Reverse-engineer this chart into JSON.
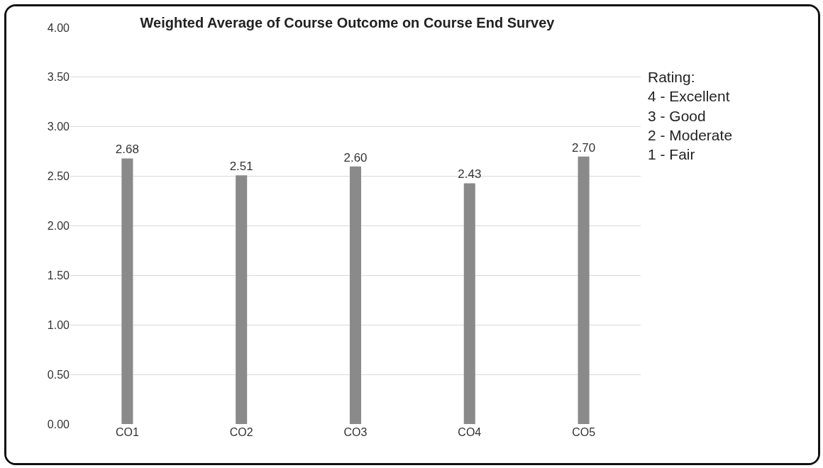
{
  "chart_data": {
    "type": "bar",
    "title": "Weighted Average of Course Outcome on Course End Survey",
    "categories": [
      "CO1",
      "CO2",
      "CO3",
      "CO4",
      "CO5"
    ],
    "values": [
      2.68,
      2.51,
      2.6,
      2.43,
      2.7
    ],
    "value_labels": [
      "2.68",
      "2.51",
      "2.60",
      "2.43",
      "2.70"
    ],
    "color": "#8a8a8a",
    "ylim": [
      0,
      4
    ],
    "yticks": [
      {
        "value": 0,
        "label": "0.00"
      },
      {
        "value": 0.5,
        "label": "0.50"
      },
      {
        "value": 1,
        "label": "1.00"
      },
      {
        "value": 1.5,
        "label": "1.50"
      },
      {
        "value": 2,
        "label": "2.00"
      },
      {
        "value": 2.5,
        "label": "2.50"
      },
      {
        "value": 3,
        "label": "3.00"
      },
      {
        "value": 3.5,
        "label": "3.50"
      },
      {
        "value": 4,
        "label": "4.00"
      }
    ],
    "grid": "y",
    "legend": false,
    "annotations": [
      "Rating:\n4 - Excellent\n3 - Good\n2 - Moderate\n1 - Fair"
    ]
  }
}
